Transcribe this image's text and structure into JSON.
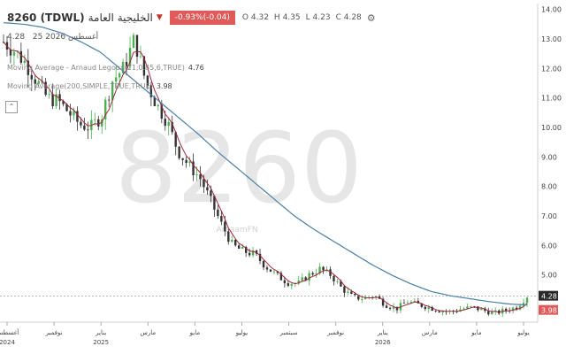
{
  "header": {
    "symbol": "8260 (TDWL)",
    "name": "الخليجية العامة",
    "change": "-0.93%(-0.04)",
    "o_label": "O",
    "o_value": "4.32",
    "h_label": "H",
    "h_value": "4.35",
    "l_label": "L",
    "l_value": "4.23",
    "c_label": "C",
    "c_value": "4.28"
  },
  "subheader": {
    "price": "4.28",
    "date": "25 أغسطس 2026"
  },
  "indicators": [
    {
      "label": "Moving Average - Arnaud Legoux(21,0.85,6,TRUE)",
      "value": "4.76"
    },
    {
      "label": "Moving Average(200,SIMPLE,TRUE,TRUE)",
      "value": "3.98"
    }
  ],
  "watermark": "8260",
  "watermark_small": "ArgaamFN",
  "colors": {
    "candle_up": "#4caf50",
    "candle_down": "#333333",
    "alma": "#a0283c",
    "sma": "#4a7fa8",
    "price_label": "#2a2a2a",
    "sma_label": "#e05a5a"
  },
  "chart_data": {
    "type": "candlestick",
    "ylim": [
      3.4,
      14.2
    ],
    "yticks": [
      "5.00",
      "6.00",
      "7.00",
      "8.00",
      "9.00",
      "10.00",
      "11.00",
      "12.00",
      "13.00",
      "14.00"
    ],
    "xticks": [
      {
        "label": "أغسطس",
        "year": "2024"
      },
      {
        "label": "نوفمبر",
        "year": ""
      },
      {
        "label": "يناير",
        "year": "2025"
      },
      {
        "label": "مارس",
        "year": ""
      },
      {
        "label": "مايو",
        "year": ""
      },
      {
        "label": "يوليو",
        "year": ""
      },
      {
        "label": "سبتمبر",
        "year": ""
      },
      {
        "label": "نوفمبر",
        "year": ""
      },
      {
        "label": "يناير",
        "year": "2026"
      },
      {
        "label": "مارس",
        "year": ""
      },
      {
        "label": "مايو",
        "year": ""
      },
      {
        "label": "يوليو",
        "year": ""
      }
    ],
    "close_anchors": [
      12.9,
      12.6,
      12.2,
      11.6,
      11.0,
      10.9,
      10.5,
      10.1,
      10.0,
      10.4,
      11.6,
      12.0,
      13.0,
      11.6,
      10.8,
      10.2,
      9.2,
      8.7,
      8.3,
      7.5,
      6.7,
      6.0,
      5.8,
      5.7,
      5.3,
      5.0,
      4.75,
      4.7,
      5.0,
      5.2,
      5.0,
      4.55,
      4.25,
      4.2,
      4.3,
      4.0,
      3.85,
      4.1,
      4.0,
      3.9,
      3.8,
      3.75,
      3.85,
      3.9,
      3.8,
      3.7,
      3.8,
      3.9,
      4.28
    ],
    "sma200_anchors": [
      13.55,
      13.5,
      13.4,
      13.2,
      12.9,
      12.55,
      12.0,
      11.45,
      10.9,
      10.35,
      9.8,
      9.2,
      8.65,
      8.1,
      7.55,
      7.0,
      6.55,
      6.15,
      5.75,
      5.35,
      5.0,
      4.7,
      4.45,
      4.3,
      4.2,
      4.1,
      4.02,
      3.98
    ],
    "last_price": "4.28",
    "last_sma": "3.98"
  }
}
